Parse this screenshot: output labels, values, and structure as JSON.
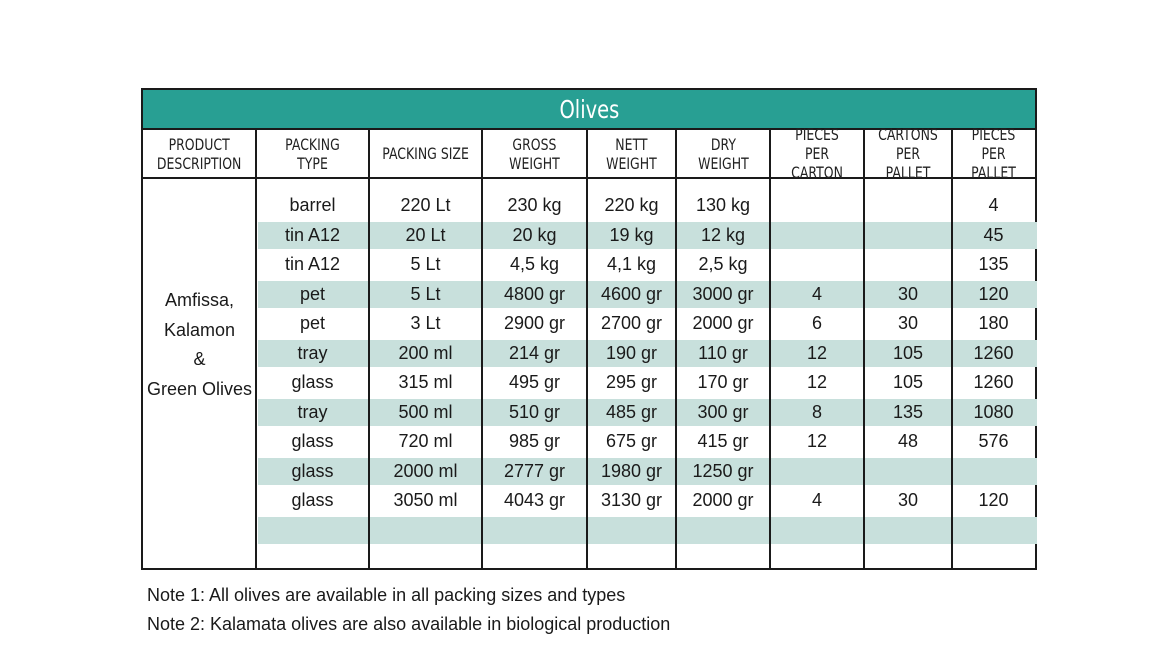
{
  "table": {
    "title": "Olives",
    "headers": [
      "PRODUCT\nDESCRIPTION",
      "PACKING TYPE",
      "PACKING SIZE",
      "GROSS\nWEIGHT",
      "NETT\nWEIGHT",
      "DRY\nWEIGHT",
      "PIECES\nPER CARTON",
      "CARTONS\nPER PALLET",
      "PIECES\nPER PALLET"
    ],
    "product_description": [
      "Amfissa,",
      "Kalamon",
      "&",
      "Green Olives"
    ],
    "rows": [
      [
        "barrel",
        "220 Lt",
        "230 kg",
        "220 kg",
        "130 kg",
        "",
        "",
        "4"
      ],
      [
        "tin A12",
        "20 Lt",
        "20 kg",
        "19 kg",
        "12 kg",
        "",
        "",
        "45"
      ],
      [
        "tin A12",
        "5 Lt",
        "4,5 kg",
        "4,1 kg",
        "2,5 kg",
        "",
        "",
        "135"
      ],
      [
        "pet",
        "5 Lt",
        "4800 gr",
        "4600 gr",
        "3000 gr",
        "4",
        "30",
        "120"
      ],
      [
        "pet",
        "3 Lt",
        "2900 gr",
        "2700 gr",
        "2000 gr",
        "6",
        "30",
        "180"
      ],
      [
        "tray",
        "200 ml",
        "214 gr",
        "190 gr",
        "110 gr",
        "12",
        "105",
        "1260"
      ],
      [
        "glass",
        "315 ml",
        "495 gr",
        "295 gr",
        "170 gr",
        "12",
        "105",
        "1260"
      ],
      [
        "tray",
        "500 ml",
        "510 gr",
        "485 gr",
        "300 gr",
        "8",
        "135",
        "1080"
      ],
      [
        "glass",
        "720 ml",
        "985 gr",
        "675 gr",
        "415 gr",
        "12",
        "48",
        "576"
      ],
      [
        "glass",
        "2000 ml",
        "2777 gr",
        "1980 gr",
        "1250 gr",
        "",
        "",
        ""
      ],
      [
        "glass",
        "3050 ml",
        "4043 gr",
        "3130 gr",
        "2000 gr",
        "4",
        "30",
        "120"
      ],
      [
        "",
        "",
        "",
        "",
        "",
        "",
        "",
        ""
      ]
    ],
    "colors": {
      "title_bar": "#289f93",
      "row_band": "#c8e0dc"
    }
  },
  "notes": [
    "Note 1: All olives are available in all packing sizes and types",
    "Note 2: Kalamata olives are also available in biological production"
  ]
}
